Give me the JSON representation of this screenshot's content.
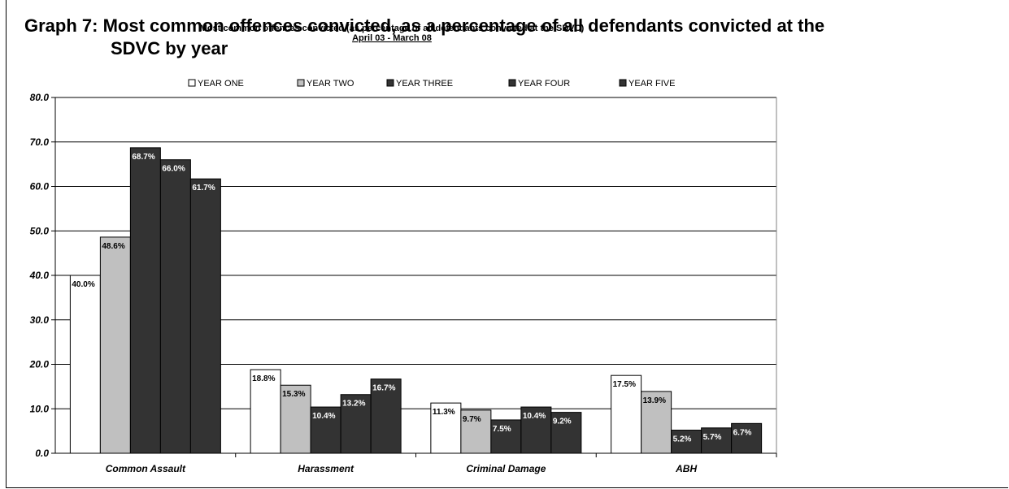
{
  "heading": {
    "line1": "Graph 7: Most common offences convicted, as a percentage of all defendants convicted at the",
    "line2": "SDVC by year"
  },
  "chart_data": {
    "type": "bar",
    "title": "Most common offences convicted (as percentage of all defendants convicted at the SDVC)",
    "subtitle": "April 03 - March 08",
    "categories": [
      "Common Assault",
      "Harassment",
      "Criminal Damage",
      "ABH"
    ],
    "series": [
      {
        "name": "YEAR ONE",
        "color": "#ffffff",
        "values": [
          40.0,
          18.8,
          11.3,
          17.5
        ],
        "labels": [
          "40.0%",
          "18.8%",
          "11.3%",
          "17.5%"
        ]
      },
      {
        "name": "YEAR TWO",
        "color": "#c0c0c0",
        "values": [
          48.6,
          15.3,
          9.7,
          13.9
        ],
        "labels": [
          "48.6%",
          "15.3%",
          "9.7%",
          "13.9%"
        ]
      },
      {
        "name": "YEAR THREE",
        "color": "#333333",
        "values": [
          68.7,
          10.4,
          7.5,
          5.2
        ],
        "labels": [
          "68.7%",
          "10.4%",
          "7.5%",
          "5.2%"
        ]
      },
      {
        "name": "YEAR FOUR",
        "color": "#333333",
        "values": [
          66.0,
          13.2,
          10.4,
          5.7
        ],
        "labels": [
          "66.0%",
          "13.2%",
          "10.4%",
          "5.7%"
        ]
      },
      {
        "name": "YEAR FIVE",
        "color": "#333333",
        "values": [
          61.7,
          16.7,
          9.2,
          6.7
        ],
        "labels": [
          "61.7%",
          "16.7%",
          "9.2%",
          "6.7%"
        ]
      }
    ],
    "ylim": [
      0,
      80
    ],
    "yticks": [
      "0.0",
      "10.0",
      "20.0",
      "30.0",
      "40.0",
      "50.0",
      "60.0",
      "70.0",
      "80.0"
    ],
    "xlabel": "",
    "ylabel": "",
    "grid": true,
    "legend": "top"
  }
}
